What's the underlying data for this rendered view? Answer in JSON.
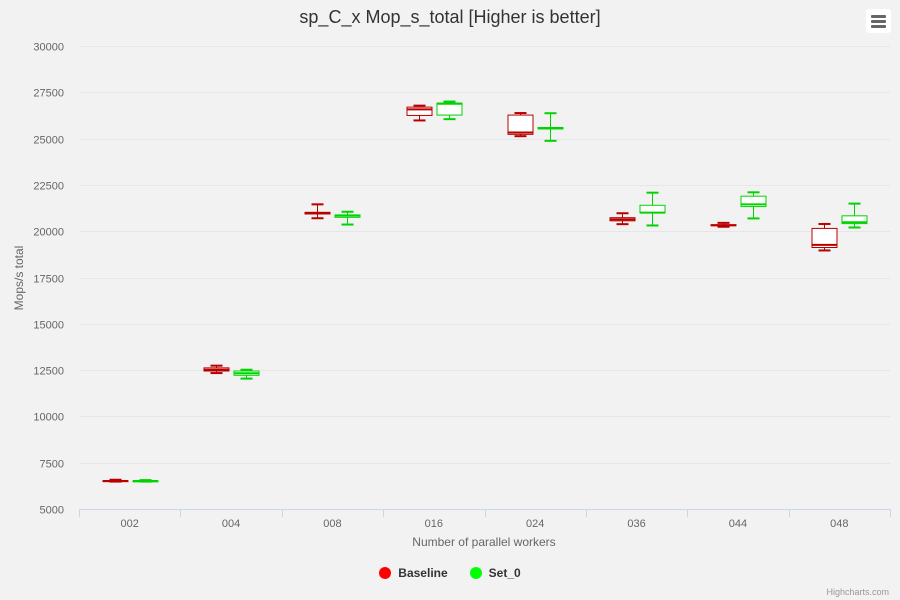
{
  "chart_data": {
    "type": "boxplot",
    "title": "sp_C_x Mop_s_total [Higher is better]",
    "xlabel": "Number of parallel workers",
    "ylabel": "Mops/s total",
    "ylim": [
      5000,
      30000
    ],
    "yticks": [
      5000,
      7500,
      10000,
      12500,
      15000,
      17500,
      20000,
      22500,
      25000,
      27500,
      30000
    ],
    "categories": [
      "002",
      "004",
      "008",
      "016",
      "024",
      "036",
      "044",
      "048"
    ],
    "grid": true,
    "legend_position": "bottom-center",
    "series": [
      {
        "name": "Baseline",
        "color": "#ff0000",
        "stroke": "#b80000",
        "boxes": [
          {
            "low": 6480,
            "q1": 6500,
            "median": 6510,
            "q3": 6530,
            "high": 6580
          },
          {
            "low": 12340,
            "q1": 12450,
            "median": 12520,
            "q3": 12620,
            "high": 12740
          },
          {
            "low": 20700,
            "q1": 20930,
            "median": 20980,
            "q3": 21020,
            "high": 21450
          },
          {
            "low": 25980,
            "q1": 26250,
            "median": 26580,
            "q3": 26700,
            "high": 26780
          },
          {
            "low": 25130,
            "q1": 25230,
            "median": 25330,
            "q3": 26270,
            "high": 26380
          },
          {
            "low": 20380,
            "q1": 20560,
            "median": 20640,
            "q3": 20730,
            "high": 20970
          },
          {
            "low": 20240,
            "q1": 20300,
            "median": 20320,
            "q3": 20350,
            "high": 20450
          },
          {
            "low": 18960,
            "q1": 19120,
            "median": 19260,
            "q3": 20150,
            "high": 20390
          }
        ]
      },
      {
        "name": "Set_0",
        "color": "#00ff00",
        "stroke": "#00d400",
        "boxes": [
          {
            "low": 6480,
            "q1": 6500,
            "median": 6510,
            "q3": 6520,
            "high": 6560
          },
          {
            "low": 12040,
            "q1": 12220,
            "median": 12330,
            "q3": 12450,
            "high": 12520
          },
          {
            "low": 20360,
            "q1": 20750,
            "median": 20840,
            "q3": 20880,
            "high": 21050
          },
          {
            "low": 26050,
            "q1": 26270,
            "median": 26880,
            "q3": 26920,
            "high": 27000
          },
          {
            "low": 24880,
            "q1": 25520,
            "median": 25560,
            "q3": 25600,
            "high": 26370
          },
          {
            "low": 20310,
            "q1": 20990,
            "median": 21000,
            "q3": 21400,
            "high": 22080
          },
          {
            "low": 20690,
            "q1": 21330,
            "median": 21450,
            "q3": 21890,
            "high": 22100
          },
          {
            "low": 20200,
            "q1": 20410,
            "median": 20480,
            "q3": 20830,
            "high": 21490
          }
        ]
      }
    ]
  },
  "menu": {
    "icon": "hamburger-menu-icon"
  },
  "credits": "Highcharts.com"
}
